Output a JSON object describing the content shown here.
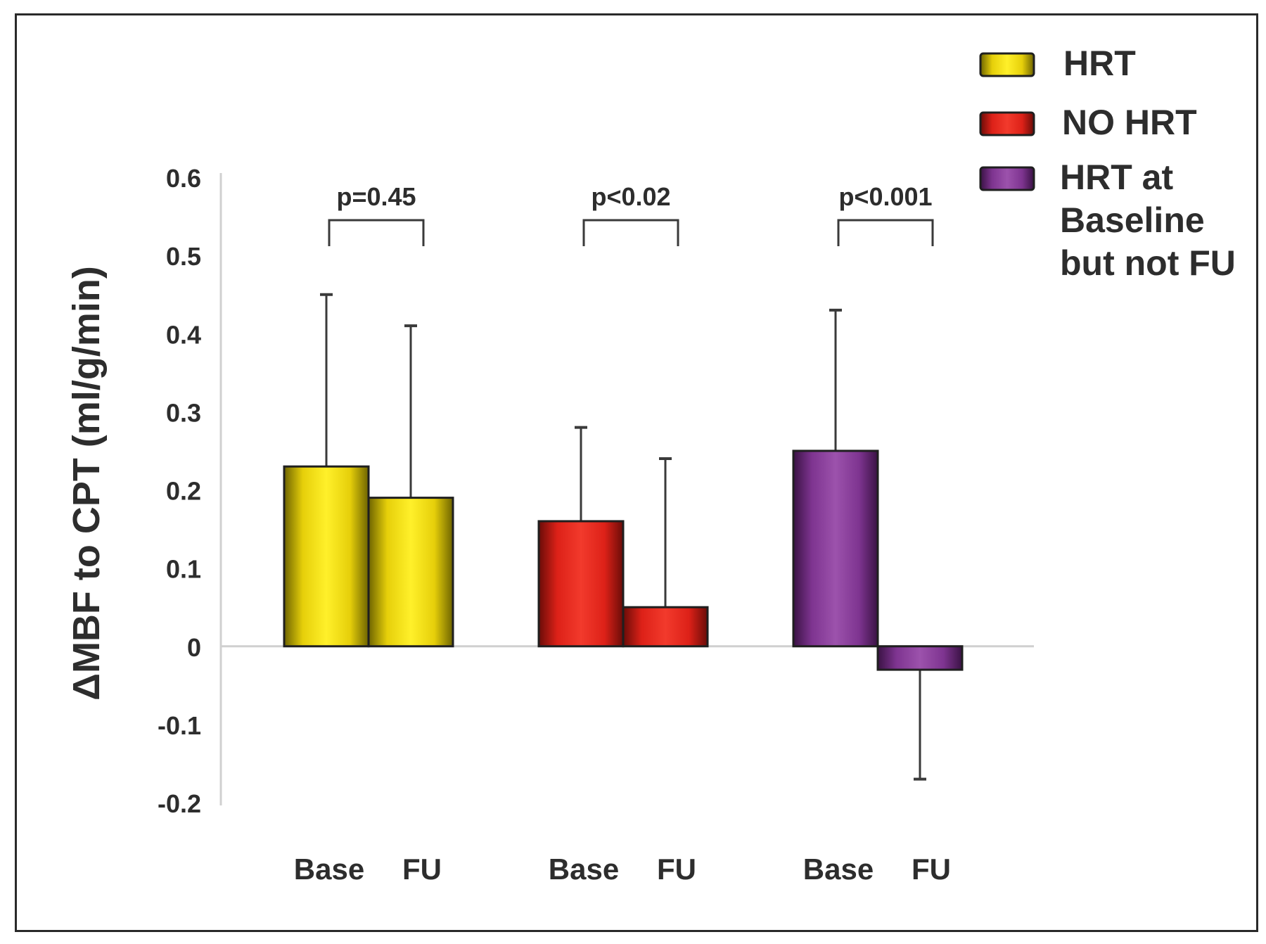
{
  "chart_data": {
    "type": "bar",
    "title": "",
    "xlabel": "",
    "ylabel": "ΔMBF to CPT (ml/g/min)",
    "ylim": [
      -0.2,
      0.6
    ],
    "yticks": [
      {
        "value": 0.6,
        "label": "0.6"
      },
      {
        "value": 0.5,
        "label": "0.5"
      },
      {
        "value": 0.4,
        "label": "0.4"
      },
      {
        "value": 0.3,
        "label": "0.3"
      },
      {
        "value": 0.2,
        "label": "0.2"
      },
      {
        "value": 0.1,
        "label": "0.1"
      },
      {
        "value": 0,
        "label": "0"
      },
      {
        "value": -0.1,
        "label": "-0.1"
      },
      {
        "value": -0.2,
        "label": "-0.2"
      }
    ],
    "categories": [
      "Base",
      "FU"
    ],
    "groups": [
      {
        "name": "HRT",
        "color": "#f2dc0e",
        "p_value": "p=0.45",
        "bars": [
          {
            "category": "Base",
            "value": 0.23,
            "error": 0.22
          },
          {
            "category": "FU",
            "value": 0.19,
            "error": 0.22
          }
        ]
      },
      {
        "name": "NO HRT",
        "color": "#e8231c",
        "p_value": "p<0.02",
        "bars": [
          {
            "category": "Base",
            "value": 0.16,
            "error": 0.12
          },
          {
            "category": "FU",
            "value": 0.05,
            "error": 0.19
          }
        ]
      },
      {
        "name": "HRT at\nBaseline\nbut not FU",
        "color": "#8a3a9a",
        "p_value": "p<0.001",
        "bars": [
          {
            "category": "Base",
            "value": 0.25,
            "error": 0.18
          },
          {
            "category": "FU",
            "value": -0.03,
            "error": 0.14
          }
        ]
      }
    ],
    "legend": {
      "position": "top-right"
    }
  }
}
